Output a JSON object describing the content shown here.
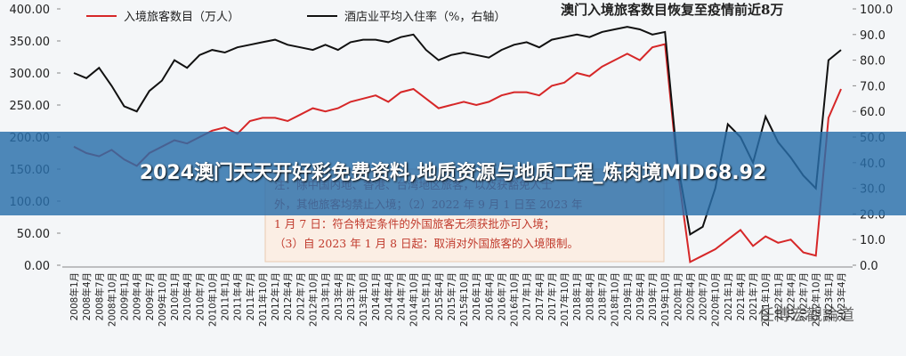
{
  "chart_data": {
    "type": "line",
    "title": "澳门入境旅客数目恢复至疫情前近8万",
    "categories": [
      "2008年1月",
      "2008年4月",
      "2008年7月",
      "2008年10月",
      "2009年1月",
      "2009年4月",
      "2009年7月",
      "2009年10月",
      "2010年1月",
      "2010年4月",
      "2010年7月",
      "2010年10月",
      "2011年1月",
      "2011年4月",
      "2011年7月",
      "2011年10月",
      "2012年1月",
      "2012年4月",
      "2012年7月",
      "2012年10月",
      "2013年1月",
      "2013年4月",
      "2013年7月",
      "2013年10月",
      "2014年1月",
      "2014年4月",
      "2014年7月",
      "2014年10月",
      "2015年1月",
      "2015年4月",
      "2015年7月",
      "2015年10月",
      "2016年1月",
      "2016年4月",
      "2016年7月",
      "2016年10月",
      "2017年1月",
      "2017年4月",
      "2017年7月",
      "2017年10月",
      "2018年1月",
      "2018年4月",
      "2018年7月",
      "2018年10月",
      "2019年1月",
      "2019年4月",
      "2019年7月",
      "2019年10月",
      "2020年1月",
      "2020年4月",
      "2020年7月",
      "2020年10月",
      "2021年1月",
      "2021年4月",
      "2021年7月",
      "2021年10月",
      "2022年1月",
      "2022年4月",
      "2022年7月",
      "2022年10月",
      "2023年1月",
      "2023年4月"
    ],
    "series": [
      {
        "name": "入境旅客数目（万人）",
        "color": "#d62728",
        "values": [
          185,
          175,
          170,
          180,
          165,
          155,
          175,
          185,
          195,
          190,
          200,
          210,
          215,
          205,
          225,
          230,
          230,
          225,
          235,
          245,
          240,
          245,
          255,
          260,
          265,
          255,
          270,
          275,
          260,
          245,
          250,
          255,
          250,
          255,
          265,
          270,
          270,
          265,
          280,
          285,
          300,
          295,
          310,
          320,
          330,
          320,
          340,
          345,
          150,
          5,
          15,
          25,
          40,
          55,
          30,
          45,
          35,
          40,
          20,
          15,
          230,
          275
        ]
      },
      {
        "name": "酒店业平均入住率（%，右轴）",
        "color": "#111111",
        "axis": "y2",
        "values": [
          75,
          73,
          77,
          70,
          62,
          60,
          68,
          72,
          80,
          77,
          82,
          84,
          83,
          85,
          86,
          87,
          88,
          86,
          85,
          84,
          86,
          84,
          87,
          88,
          88,
          87,
          89,
          90,
          84,
          80,
          82,
          83,
          82,
          81,
          84,
          86,
          87,
          85,
          88,
          89,
          90,
          89,
          91,
          92,
          93,
          92,
          90,
          91,
          40,
          12,
          15,
          30,
          55,
          50,
          40,
          58,
          48,
          42,
          35,
          30,
          80,
          84
        ]
      }
    ],
    "ylim": [
      0,
      400
    ],
    "yticks": [
      {
        "value": 0,
        "label": "0.00"
      },
      {
        "value": 50,
        "label": "50.00"
      },
      {
        "value": 100,
        "label": "100.00"
      },
      {
        "value": 150,
        "label": "150.00"
      },
      {
        "value": 200,
        "label": "200.00"
      },
      {
        "value": 250,
        "label": "250.00"
      },
      {
        "value": 300,
        "label": "300.00"
      },
      {
        "value": 350,
        "label": "350.00"
      },
      {
        "value": 400,
        "label": "400.00"
      }
    ],
    "y2lim": [
      0,
      100
    ],
    "y2ticks": [
      {
        "value": 0,
        "label": "0.0"
      },
      {
        "value": 10,
        "label": "10.0"
      },
      {
        "value": 20,
        "label": "20.0"
      },
      {
        "value": 30,
        "label": "30.0"
      },
      {
        "value": 40,
        "label": "40.0"
      },
      {
        "value": 50,
        "label": "50.0"
      },
      {
        "value": 60,
        "label": "60.0"
      },
      {
        "value": 70,
        "label": "70.0"
      },
      {
        "value": 80,
        "label": "80.0"
      },
      {
        "value": 90,
        "label": "90.0"
      },
      {
        "value": 100,
        "label": "100.0"
      }
    ],
    "grid": false,
    "note": [
      "注：除中国内地、香港、台湾地区旅客，以及获豁免人士",
      "外，其他旅客均禁止入境；（2）2022 年 9 月 1 日至 2023 年",
      "1 月 7 日：符合特定条件的外国旅客无须获批亦可入境；",
      "（3）自 2023 年 1 月 8 日起：取消对外国旅客的入境限制。"
    ]
  },
  "banner": "2024澳门天天开好彩免费资料,地质资源与地质工程_炼肉境MID68.92",
  "watermark": "任博宏觀論道"
}
